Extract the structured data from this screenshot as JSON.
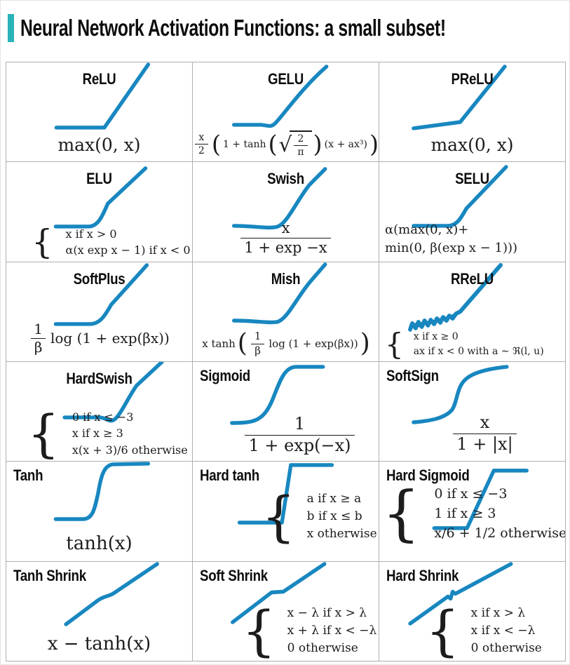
{
  "header": {
    "title": "Neural Network Activation Functions: a small subset!"
  },
  "style": {
    "accent_color": "#2ab3b8",
    "curve_color": "#1887c0",
    "grid_line_color": "#b0b0b0",
    "title_color": "#0d0d0d",
    "formula_color": "#1c1c1c"
  },
  "math": {
    "radical": "√",
    "brace": "{"
  },
  "grid": {
    "columns": 3,
    "rows": 6,
    "cells": [
      {
        "id": "relu",
        "name": "ReLU",
        "title_align": "center",
        "curve": "flat-then-linear-rise",
        "formula": {
          "type": "inline",
          "size": 25,
          "parts": [
            {
              "t": "txt",
              "v": "max(0, x)"
            }
          ]
        }
      },
      {
        "id": "gelu",
        "name": "GELU",
        "title_align": "center",
        "curve": "smooth-dip-then-rise",
        "formula": {
          "type": "inline",
          "size": 14,
          "parts": [
            {
              "t": "frac",
              "num": "x",
              "den": "2"
            },
            {
              "t": "par",
              "v": "("
            },
            {
              "t": "txt",
              "v": "1 + tanh"
            },
            {
              "t": "par",
              "v": "("
            },
            {
              "t": "sqrtfrac",
              "num": "2",
              "den": "π"
            },
            {
              "t": "par",
              "v": ")"
            },
            {
              "t": "txt",
              "v": "(x + ax³)"
            },
            {
              "t": "par",
              "v": ")"
            }
          ]
        }
      },
      {
        "id": "prelu",
        "name": "PReLU",
        "title_align": "center",
        "curve": "leaky-linear-rise",
        "formula": {
          "type": "inline",
          "size": 25,
          "parts": [
            {
              "t": "txt",
              "v": "max(0, x)"
            }
          ]
        }
      },
      {
        "id": "elu",
        "name": "ELU",
        "title_align": "center",
        "curve": "smooth-elbow-rise",
        "formula": {
          "type": "cases",
          "size": 16,
          "lines": [
            "x if x > 0",
            "α(x exp x − 1) if x < 0"
          ]
        }
      },
      {
        "id": "swish",
        "name": "Swish",
        "title_align": "center",
        "curve": "dip-then-rise",
        "formula": {
          "type": "inline",
          "size": 21,
          "parts": [
            {
              "t": "frac",
              "num": "x",
              "den": "1 + exp −x"
            }
          ]
        }
      },
      {
        "id": "selu",
        "name": "SELU",
        "title_align": "center",
        "curve": "smooth-elbow-rise",
        "formula": {
          "type": "lines",
          "size": 18,
          "lines": [
            "α(max(0, x)+",
            "min(0, β(exp x − 1)))"
          ]
        }
      },
      {
        "id": "softplus",
        "name": "SoftPlus",
        "title_align": "center",
        "curve": "smooth-elbow-rise",
        "formula": {
          "type": "inline",
          "size": 20,
          "parts": [
            {
              "t": "frac",
              "num": "1",
              "den": "β"
            },
            {
              "t": "txt",
              "v": "log (1 + exp(βx))"
            }
          ]
        }
      },
      {
        "id": "mish",
        "name": "Mish",
        "title_align": "center",
        "curve": "dip-then-rise",
        "formula": {
          "type": "inline",
          "size": 15,
          "parts": [
            {
              "t": "txt",
              "v": "x tanh"
            },
            {
              "t": "par",
              "v": "("
            },
            {
              "t": "frac",
              "num": "1",
              "den": "β"
            },
            {
              "t": "txt",
              "v": "log (1 + exp(βx))"
            },
            {
              "t": "par",
              "v": ")"
            }
          ]
        }
      },
      {
        "id": "rrelu",
        "name": "RReLU",
        "title_align": "center",
        "curve": "noisy-left-then-rise",
        "formula": {
          "type": "cases",
          "size": 14,
          "lines": [
            "x if x ≥ 0",
            "ax if x < 0 with a ∼ ℜ(l, u)"
          ]
        }
      },
      {
        "id": "hardswish",
        "name": "HardSwish",
        "title_align": "center",
        "curve": "flat-dip-then-rise",
        "formula": {
          "type": "cases",
          "size": 16,
          "lines": [
            "0 if x ≤ −3",
            "x if x ≥ 3",
            "x(x + 3)/6 otherwise"
          ]
        }
      },
      {
        "id": "sigmoid",
        "name": "Sigmoid",
        "title_align": "left",
        "curve": "s-curve",
        "formula": {
          "type": "inline",
          "size": 24,
          "parts": [
            {
              "t": "frac",
              "num": "1",
              "den": "1 + exp(−x)"
            }
          ]
        }
      },
      {
        "id": "softsign",
        "name": "SoftSign",
        "title_align": "left",
        "curve": "s-curve-soft",
        "formula": {
          "type": "inline",
          "size": 24,
          "parts": [
            {
              "t": "frac",
              "num": "x",
              "den": "1 + |x|"
            }
          ]
        }
      },
      {
        "id": "tanh",
        "name": "Tanh",
        "title_align": "left",
        "curve": "steep-s-curve",
        "formula": {
          "type": "inline",
          "size": 26,
          "parts": [
            {
              "t": "txt",
              "v": "tanh(x)"
            }
          ]
        }
      },
      {
        "id": "hardtanh",
        "name": "Hard tanh",
        "title_align": "left",
        "curve": "piecewise-linear-s",
        "formula": {
          "type": "cases",
          "size": 17,
          "lines": [
            "a if x ≥ a",
            "b if x ≤ b",
            "x otherwise"
          ]
        }
      },
      {
        "id": "hardsigmoid",
        "name": "Hard Sigmoid",
        "title_align": "left",
        "curve": "piecewise-linear-s",
        "formula": {
          "type": "cases",
          "size": 19,
          "lines": [
            "0 if x ≤ −3",
            "1 if x ≥ 3",
            "x/6 + 1/2 otherwise"
          ]
        }
      },
      {
        "id": "tanhshrink",
        "name": "Tanh Shrink",
        "title_align": "left",
        "curve": "diagonal-with-plateau",
        "formula": {
          "type": "inline",
          "size": 26,
          "parts": [
            {
              "t": "txt",
              "v": "x − tanh(x)"
            }
          ]
        }
      },
      {
        "id": "softshrink",
        "name": "Soft Shrink",
        "title_align": "left",
        "curve": "diagonal-with-flat-notch",
        "formula": {
          "type": "cases",
          "size": 17,
          "lines": [
            "x − λ if x > λ",
            "x + λ if x < −λ",
            "0 otherwise"
          ]
        }
      },
      {
        "id": "hardshrink",
        "name": "Hard Shrink",
        "title_align": "left",
        "curve": "diagonal-with-step",
        "formula": {
          "type": "cases",
          "size": 17,
          "lines": [
            "x if x > λ",
            "x if x < −λ",
            "0 otherwise"
          ]
        }
      }
    ]
  }
}
